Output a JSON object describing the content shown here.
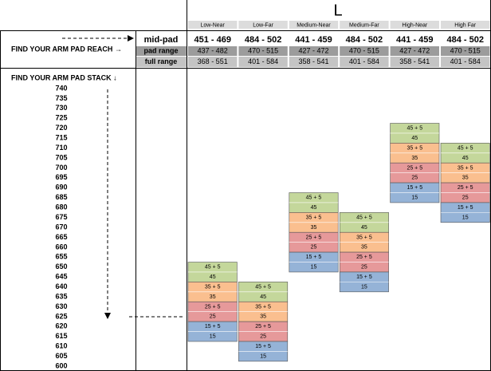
{
  "title": "L",
  "reach_prompt": "FIND YOUR ARM PAD REACH →",
  "stack_prompt": "FIND YOUR ARM PAD STACK ↓",
  "row_labels": [
    "mid-pad",
    "pad range",
    "full range"
  ],
  "stacks": [
    740,
    735,
    730,
    725,
    720,
    715,
    710,
    705,
    700,
    695,
    690,
    685,
    680,
    675,
    670,
    665,
    660,
    655,
    650,
    645,
    640,
    635,
    630,
    625,
    620,
    615,
    610,
    605,
    600
  ],
  "columns": [
    {
      "name": "Low-Near",
      "mid_pad": "451 - 469",
      "pad_range": "437 - 482",
      "full_range": "368 - 551",
      "cells": [
        [
          "45 + 5",
          "45"
        ],
        [
          "35 + 5",
          "35"
        ],
        [
          "25 + 5",
          "25"
        ],
        [
          "15 + 5",
          "15"
        ]
      ]
    },
    {
      "name": "Low-Far",
      "mid_pad": "484 - 502",
      "pad_range": "470 - 515",
      "full_range": "401 - 584",
      "cells": [
        [
          "45 + 5",
          "45"
        ],
        [
          "35 + 5",
          "35"
        ],
        [
          "25 + 5",
          "25"
        ],
        [
          "15 + 5",
          "15"
        ]
      ]
    },
    {
      "name": "Medium-Near",
      "mid_pad": "441 - 459",
      "pad_range": "427 - 472",
      "full_range": "358 - 541",
      "cells": [
        [
          "45 + 5",
          "45"
        ],
        [
          "35 + 5",
          "35"
        ],
        [
          "25 + 5",
          "25"
        ],
        [
          "15 + 5",
          "15"
        ]
      ]
    },
    {
      "name": "Medium-Far",
      "mid_pad": "484 - 502",
      "pad_range": "470 - 515",
      "full_range": "401 - 584",
      "cells": [
        [
          "45 + 5",
          "45"
        ],
        [
          "35 + 5",
          "35"
        ],
        [
          "25 + 5",
          "25"
        ],
        [
          "15 + 5",
          "15"
        ]
      ]
    },
    {
      "name": "High-Near",
      "mid_pad": "441 - 459",
      "pad_range": "427 - 472",
      "full_range": "358 - 541",
      "cells": [
        [
          "45 + 5",
          "45"
        ],
        [
          "35 + 5",
          "35"
        ],
        [
          "25 + 5",
          "25"
        ],
        [
          "15 + 5",
          "15"
        ]
      ]
    },
    {
      "name": "High Far",
      "mid_pad": "484 - 502",
      "pad_range": "470 - 515",
      "full_range": "401 - 584",
      "cells": [
        [
          "45 + 5",
          "45"
        ],
        [
          "35 + 5",
          "35"
        ],
        [
          "25 + 5",
          "25"
        ],
        [
          "15 + 5",
          "15"
        ]
      ]
    }
  ]
}
